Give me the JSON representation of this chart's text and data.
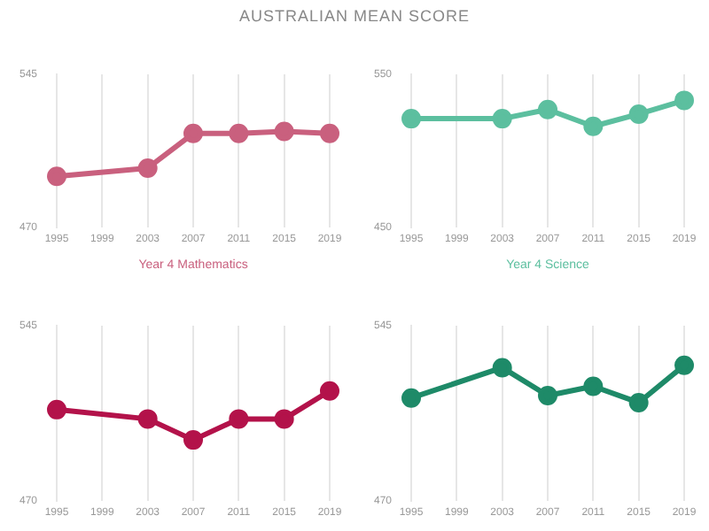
{
  "chart_data": [
    {
      "type": "line",
      "title": "AUSTRALIAN MEAN SCORE",
      "xlabel": "Year 4 Mathematics",
      "x": [
        1995,
        2003,
        2007,
        2011,
        2015,
        2019
      ],
      "xlim": [
        1995,
        2019
      ],
      "xticks": [
        1995,
        1999,
        2003,
        2007,
        2011,
        2015,
        2019
      ],
      "ylim": [
        470,
        545
      ],
      "yticks": [
        470,
        545
      ],
      "grid": "x",
      "marker": "circle",
      "legend": false,
      "series": [
        {
          "color": "#c9607e",
          "values": [
            495,
            499,
            516,
            516,
            517,
            516
          ]
        }
      ]
    },
    {
      "type": "line",
      "xlabel": "Year 4 Science",
      "x": [
        1995,
        2003,
        2007,
        2011,
        2015,
        2019
      ],
      "xlim": [
        1995,
        2019
      ],
      "xticks": [
        1995,
        1999,
        2003,
        2007,
        2011,
        2015,
        2019
      ],
      "ylim": [
        450,
        550
      ],
      "yticks": [
        450,
        550
      ],
      "grid": "x",
      "marker": "circle",
      "legend": false,
      "series": [
        {
          "color": "#5cbf9f",
          "values": [
            521,
            521,
            527,
            516,
            524,
            533
          ]
        }
      ]
    },
    {
      "type": "line",
      "x": [
        1995,
        2003,
        2007,
        2011,
        2015,
        2019
      ],
      "xlim": [
        1995,
        2019
      ],
      "xticks": [
        1995,
        1999,
        2003,
        2007,
        2011,
        2015,
        2019
      ],
      "ylim": [
        470,
        545
      ],
      "yticks": [
        470,
        545
      ],
      "grid": "x",
      "marker": "circle",
      "legend": false,
      "series": [
        {
          "color": "#b3124a",
          "values": [
            509,
            505,
            496,
            505,
            505,
            517
          ]
        }
      ]
    },
    {
      "type": "line",
      "x": [
        1995,
        2003,
        2007,
        2011,
        2015,
        2019
      ],
      "xlim": [
        1995,
        2019
      ],
      "xticks": [
        1995,
        1999,
        2003,
        2007,
        2011,
        2015,
        2019
      ],
      "ylim": [
        470,
        545
      ],
      "yticks": [
        470,
        545
      ],
      "grid": "x",
      "marker": "circle",
      "legend": false,
      "series": [
        {
          "color": "#1e8a68",
          "values": [
            514,
            527,
            515,
            519,
            512,
            528
          ]
        }
      ]
    }
  ]
}
